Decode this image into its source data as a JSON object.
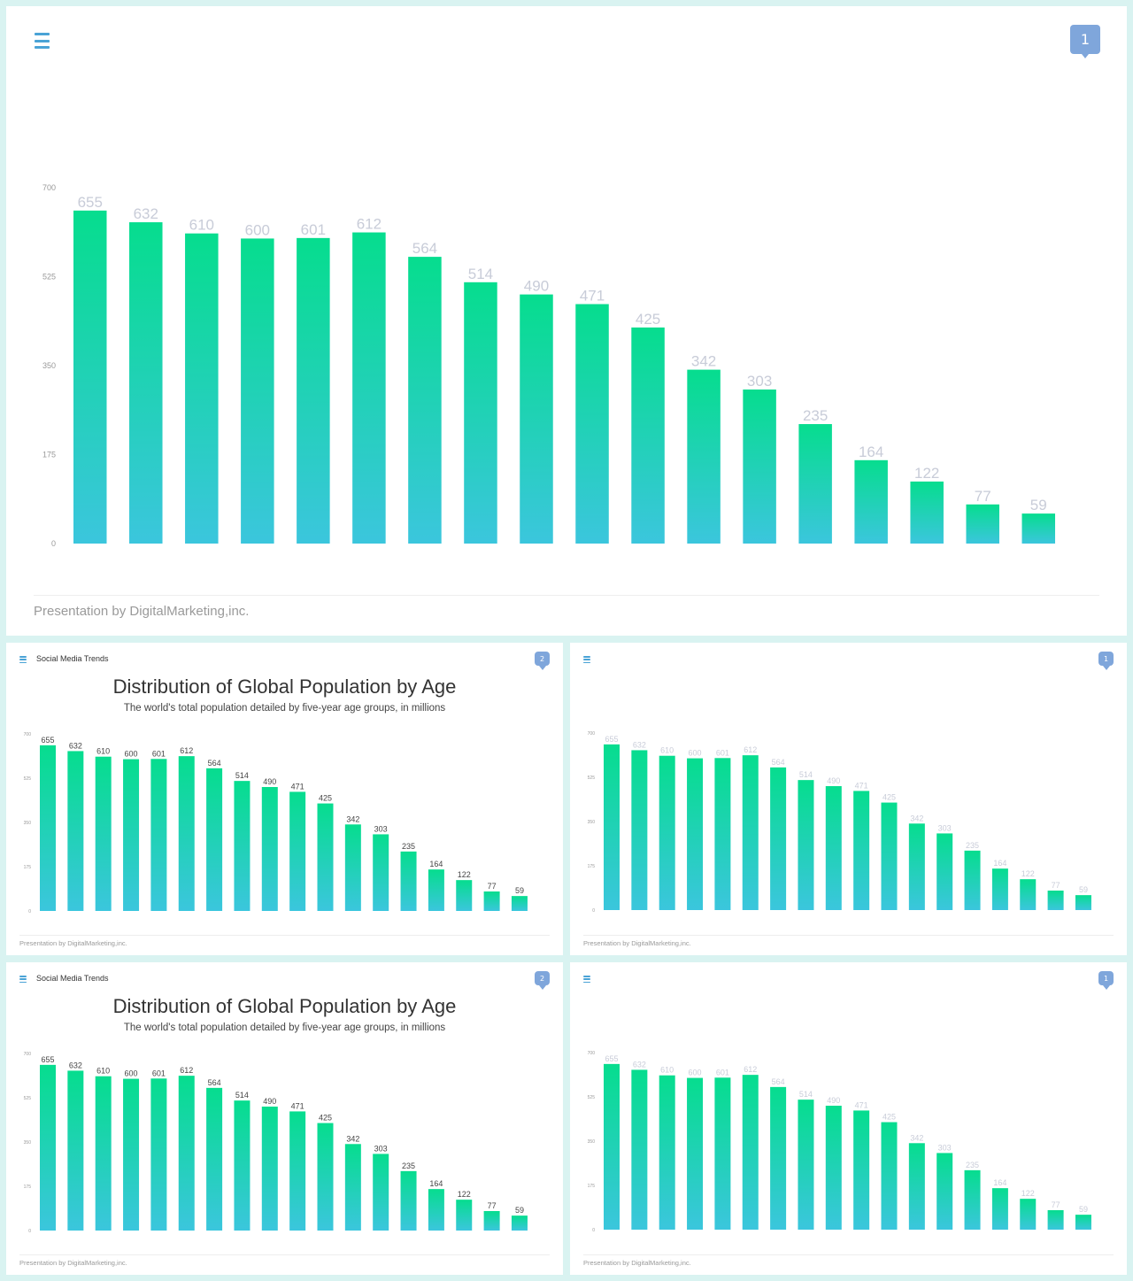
{
  "colors": {
    "bar_top": "#06dd8e",
    "bar_bottom": "#3bc6dd",
    "menu": "#4aa3d6",
    "badge": "#7fa6db",
    "axis_text": "#999999",
    "label_light": "#c8ccd8",
    "label_dark": "#444444"
  },
  "slides": [
    {
      "menu_icon": "hamburger-menu-icon",
      "page_number": "1",
      "brand": "",
      "title": "",
      "subtitle": "",
      "footer": "Presentation  by DigitalMarketing,inc."
    },
    {
      "menu_icon": "hamburger-menu-icon",
      "page_number": "2",
      "brand": "Social Media Trends",
      "title": "Distribution of Global Population by Age",
      "subtitle": "The world's total population detailed by five-year age groups, in millions",
      "footer": "Presentation  by DigitalMarketing,inc."
    },
    {
      "menu_icon": "hamburger-menu-icon",
      "page_number": "1",
      "brand": "",
      "title": "",
      "subtitle": "",
      "footer": "Presentation  by DigitalMarketing,inc."
    },
    {
      "menu_icon": "hamburger-menu-icon",
      "page_number": "2",
      "brand": "Social Media Trends",
      "title": "Distribution of Global Population by Age",
      "subtitle": "The world's total population detailed by five-year age groups, in millions",
      "footer": "Presentation  by DigitalMarketing,inc."
    },
    {
      "menu_icon": "hamburger-menu-icon",
      "page_number": "1",
      "brand": "",
      "title": "",
      "subtitle": "",
      "footer": "Presentation  by DigitalMarketing,inc."
    }
  ],
  "chart_data": {
    "type": "bar",
    "values": [
      655,
      632,
      610,
      600,
      601,
      612,
      564,
      514,
      490,
      471,
      425,
      342,
      303,
      235,
      164,
      122,
      77,
      59
    ],
    "yticks": [
      "0",
      "175",
      "350",
      "525",
      "700"
    ],
    "ylim": [
      0,
      700
    ],
    "grid": false,
    "data_labels": [
      "655",
      "632",
      "610",
      "600",
      "601",
      "612",
      "564",
      "514",
      "490",
      "471",
      "425",
      "342",
      "303",
      "235",
      "164",
      "122",
      "77",
      "59"
    ]
  }
}
